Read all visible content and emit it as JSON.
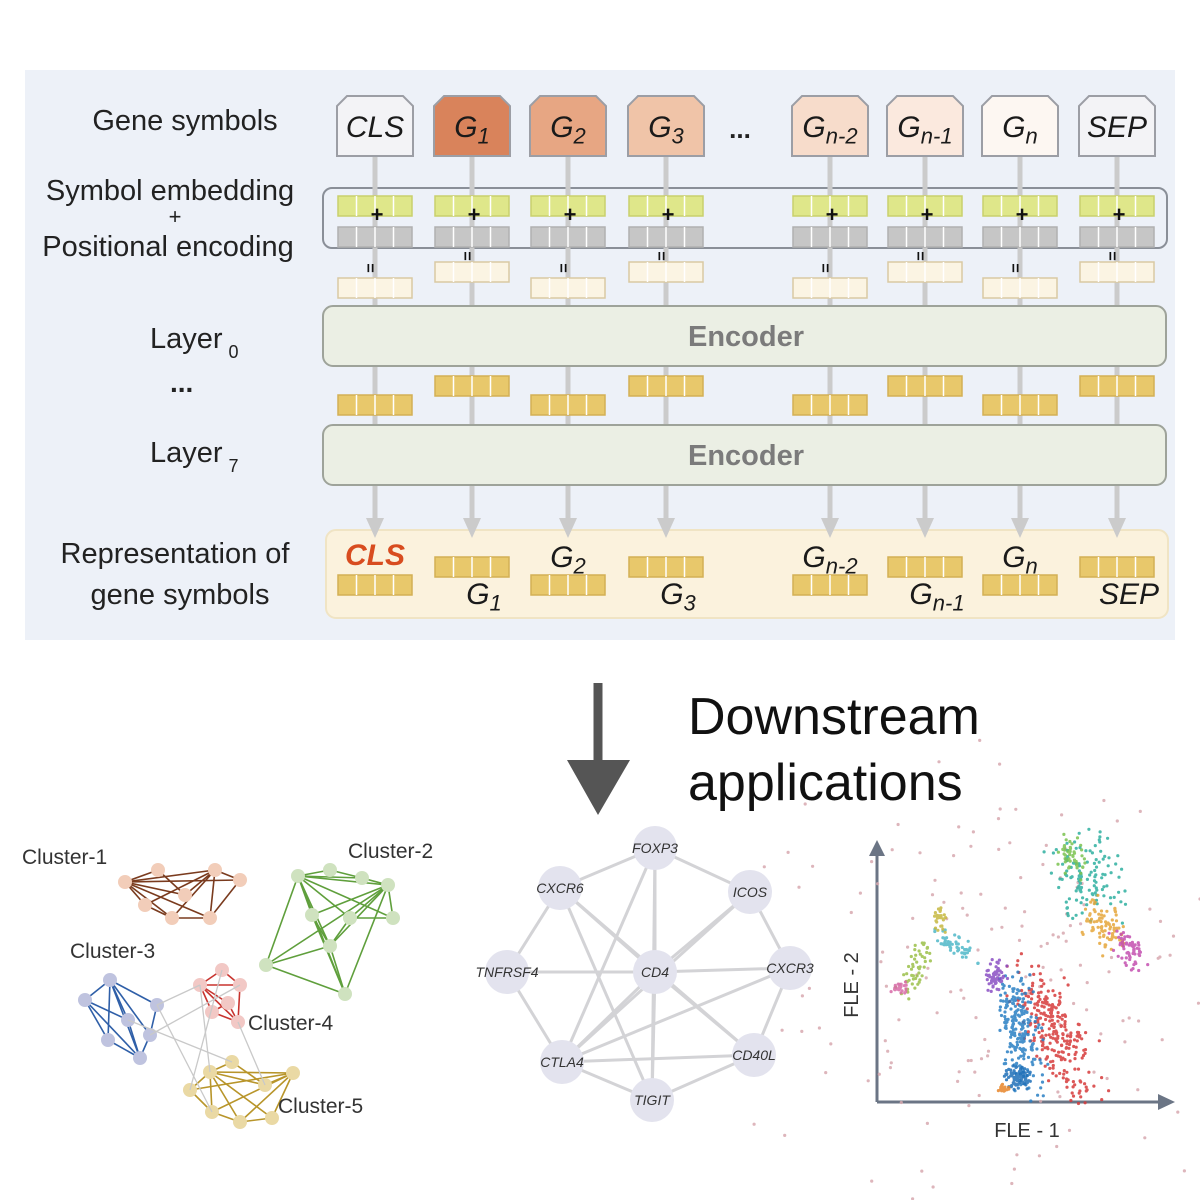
{
  "colors": {
    "panel_bg": "#edf1f8",
    "rep_bg": "#fbf2dd",
    "encoder_fill": "#ebefe4",
    "encoder_text": "#7b7b7b",
    "arrow": "#cbcbcb",
    "cls_red": "#d84c1f",
    "yellow_cell": "#e8c86b",
    "green_cell": "#dfe78a",
    "gray_cell": "#c6c6c6",
    "cream_cell": "#fbf4e3",
    "big_arrow": "#555555"
  },
  "row_labels": {
    "gene_symbols": "Gene symbols",
    "symbol_embedding": "Symbol embedding",
    "plus": "+",
    "positional_encoding": "Positional encoding",
    "layer0_main": "Layer",
    "layer0_sub": "0",
    "ellipsis": "...",
    "layer7_main": "Layer",
    "layer7_sub": "7",
    "representation_line1": "Representation of",
    "representation_line2": "gene symbols"
  },
  "tokens": [
    {
      "main": "CLS",
      "sub": "",
      "fill": "#f3f3f6"
    },
    {
      "main": "G",
      "sub": "1",
      "fill": "#d9835b"
    },
    {
      "main": "G",
      "sub": "2",
      "fill": "#e7a683"
    },
    {
      "main": "G",
      "sub": "3",
      "fill": "#f0c4a8"
    },
    {
      "main": "G",
      "sub": "n-2",
      "fill": "#f7dccb"
    },
    {
      "main": "G",
      "sub": "n-1",
      "fill": "#fbe9de"
    },
    {
      "main": "G",
      "sub": "n",
      "fill": "#fdf7f2"
    },
    {
      "main": "SEP",
      "sub": "",
      "fill": "#f3f3f6"
    }
  ],
  "token_ellipsis": "...",
  "encoder_label": "Encoder",
  "representations": [
    {
      "main": "CLS",
      "sub": ""
    },
    {
      "main": "G",
      "sub": "1"
    },
    {
      "main": "G",
      "sub": "2"
    },
    {
      "main": "G",
      "sub": "3"
    },
    {
      "main": "G",
      "sub": "n-2"
    },
    {
      "main": "G",
      "sub": "n-1"
    },
    {
      "main": "G",
      "sub": "n"
    },
    {
      "main": "SEP",
      "sub": ""
    }
  ],
  "downstream": {
    "line1": "Downstream",
    "line2": "applications"
  },
  "cluster_panel": {
    "labels": [
      "Cluster-1",
      "Cluster-2",
      "Cluster-3",
      "Cluster-4",
      "Cluster-5"
    ],
    "colors": [
      "#7a3b1e",
      "#5f9f3c",
      "#2f5fa8",
      "#c8342f",
      "#b8952a"
    ],
    "node_colors": [
      "#f2cdb9",
      "#cfe2bf",
      "#bfc3df",
      "#f2c8c5",
      "#ead9a4"
    ]
  },
  "network_panel": {
    "nodes": [
      "FOXP3",
      "CXCR6",
      "ICOS",
      "TNFRSF4",
      "CD4",
      "CXCR3",
      "CTLA4",
      "CD40L",
      "TIGIT"
    ]
  },
  "scatter_panel": {
    "xlabel": "FLE - 1",
    "ylabel": "FLE - 2"
  }
}
